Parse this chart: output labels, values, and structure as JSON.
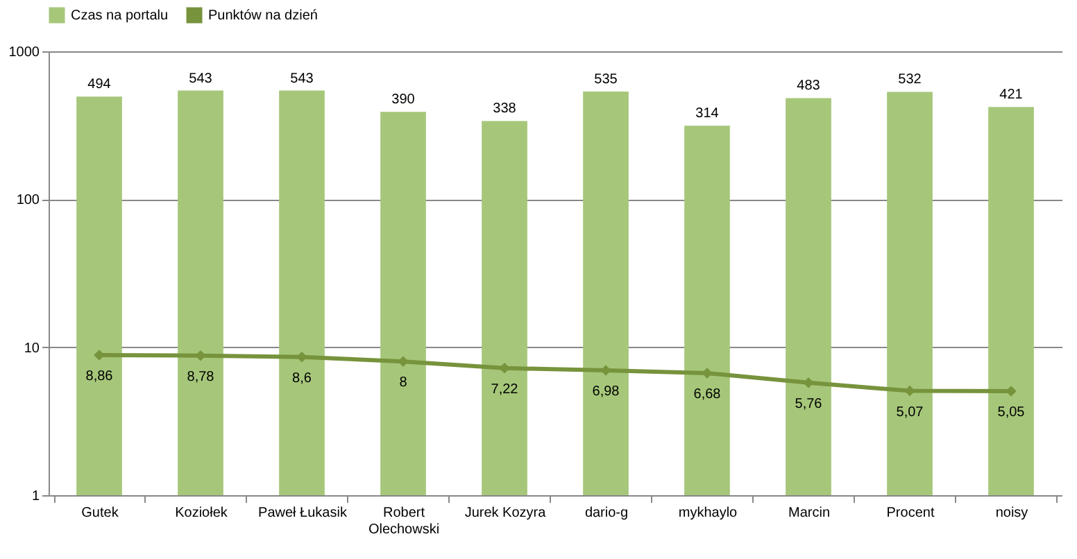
{
  "chart_data": {
    "type": "bar",
    "categories": [
      "Gutek",
      "Koziołek",
      "Paweł Łukasik",
      "Robert Olechowski",
      "Jurek Kozyra",
      "dario-g",
      "mykhaylo",
      "Marcin",
      "Procent",
      "noisy"
    ],
    "series": [
      {
        "name": "Czas na portalu",
        "color": "#a6c77a",
        "values": [
          494,
          543,
          543,
          390,
          338,
          535,
          314,
          483,
          532,
          421
        ],
        "value_labels": [
          "494",
          "543",
          "543",
          "390",
          "338",
          "535",
          "314",
          "483",
          "532",
          "421"
        ]
      },
      {
        "name": "Punktów na dzień",
        "type": "line",
        "color": "#77933c",
        "values": [
          8.86,
          8.78,
          8.6,
          8,
          7.22,
          6.98,
          6.68,
          5.76,
          5.07,
          5.05
        ],
        "value_labels": [
          "8,86",
          "8,78",
          "8,6",
          "8",
          "7,22",
          "6,98",
          "6,68",
          "5,76",
          "5,07",
          "5,05"
        ]
      }
    ],
    "log": "y",
    "ylim": [
      1,
      1000
    ],
    "yticks": [
      1,
      10,
      100,
      1000
    ],
    "grid": "y",
    "legend": "top",
    "marker": "diamond",
    "line_style": "solid"
  }
}
